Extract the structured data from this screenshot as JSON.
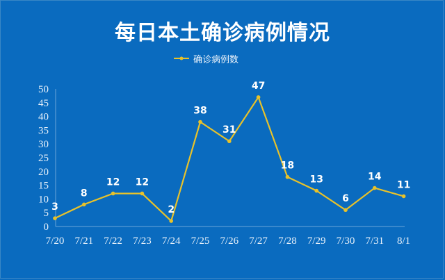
{
  "chart_data": {
    "type": "line",
    "title": "每日本土确诊病例情况",
    "xlabel": "",
    "ylabel": "",
    "categories": [
      "7/20",
      "7/21",
      "7/22",
      "7/23",
      "7/24",
      "7/25",
      "7/26",
      "7/27",
      "7/28",
      "7/29",
      "7/30",
      "7/31",
      "8/1"
    ],
    "series": [
      {
        "name": "确诊病例数",
        "values": [
          3,
          8,
          12,
          12,
          2,
          38,
          31,
          47,
          18,
          13,
          6,
          14,
          11
        ],
        "color": "#e8c22a"
      }
    ],
    "ylim": [
      0,
      50
    ],
    "yticks": [
      0,
      5,
      10,
      15,
      20,
      25,
      30,
      35,
      40,
      45,
      50
    ],
    "grid": false,
    "legend_position": "top",
    "data_labels": true
  },
  "colors": {
    "background": "#0a6bbf",
    "line": "#e8c22a",
    "text": "#ffffff",
    "axis": "#6aa6d9"
  }
}
